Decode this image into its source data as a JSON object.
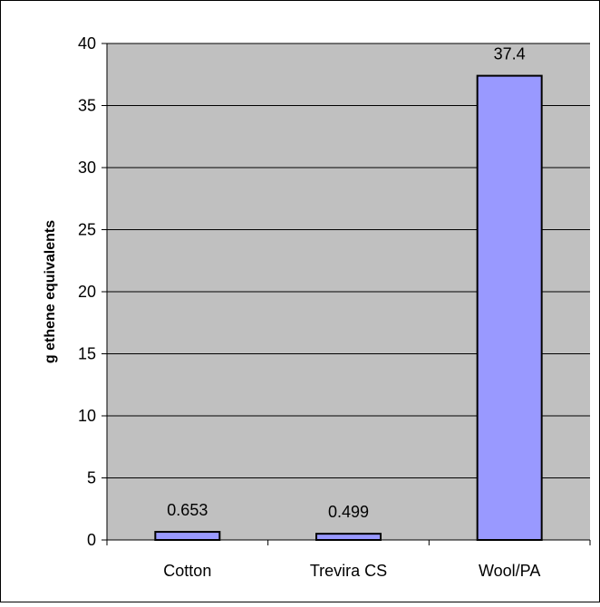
{
  "chart_data": {
    "type": "bar",
    "categories": [
      "Cotton",
      "Trevira CS",
      "Wool/PA"
    ],
    "values": [
      0.653,
      0.499,
      37.4
    ],
    "value_labels": [
      "0.653",
      "0.499",
      "37.4"
    ],
    "title": "",
    "xlabel": "",
    "ylabel": "g ethene equivalents",
    "ylim": [
      0,
      40
    ],
    "yticks": [
      "0",
      "5",
      "10",
      "15",
      "20",
      "25",
      "30",
      "35",
      "40"
    ],
    "grid": true,
    "legend": "none",
    "colors": {
      "bar_fill": "#9999ff",
      "bar_stroke": "#000000",
      "plot_background": "#c0c0c0",
      "gridline": "#000000",
      "frame": "#000000"
    }
  }
}
